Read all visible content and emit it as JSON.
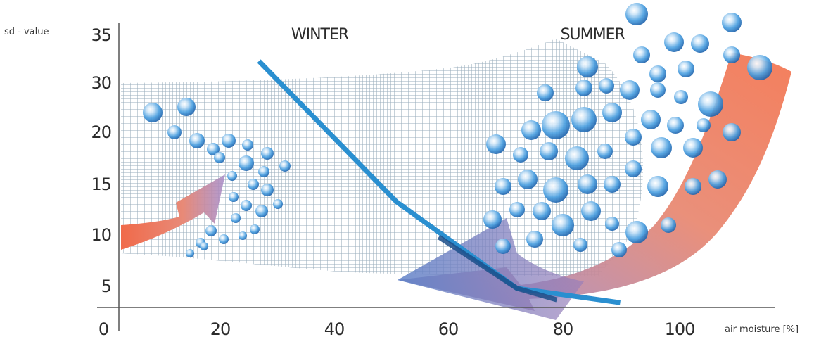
{
  "chart_data": {
    "type": "line",
    "title": "",
    "xlabel": "air moisture [%]",
    "ylabel": "sd - value",
    "x_ticks": [
      "0",
      "20",
      "40",
      "60",
      "80",
      "100"
    ],
    "y_ticks": [
      "5",
      "10",
      "15",
      "20",
      "30",
      "35"
    ],
    "series": [
      {
        "points": [
          {
            "x": 27,
            "y": 32
          },
          {
            "x": 51,
            "y": 13
          },
          {
            "x": 72,
            "y": 4
          },
          {
            "x": 90,
            "y": 1
          }
        ],
        "color": "#2a8fd0"
      }
    ],
    "annotations": [
      {
        "text": "WINTER",
        "x": 30,
        "y": 34.5
      },
      {
        "text": "SUMMER",
        "x": 68,
        "y": 34.5
      }
    ],
    "grid": false,
    "colors": {
      "line": "#2a8fd0",
      "line_dark": "#1b4f8a",
      "mesh": "#8ea4b4",
      "drop": "#4a9fe0",
      "red_arrow": "#f06a4a",
      "blue_arrow": "#6c86c8",
      "axis": "#555555"
    }
  }
}
